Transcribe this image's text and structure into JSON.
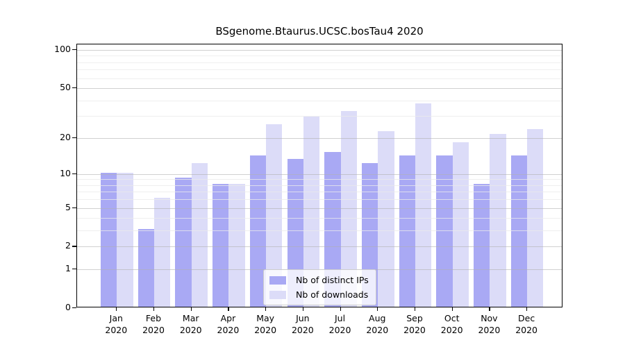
{
  "title": "BSgenome.Btaurus.UCSC.bosTau4 2020",
  "chart_data": {
    "type": "bar",
    "title": "BSgenome.Btaurus.UCSC.bosTau4 2020",
    "categories": [
      "Jan",
      "Feb",
      "Mar",
      "Apr",
      "May",
      "Jun",
      "Jul",
      "Aug",
      "Sep",
      "Oct",
      "Nov",
      "Dec"
    ],
    "year_label": "2020",
    "series": [
      {
        "name": "Nb of distinct IPs",
        "color": "#a9a9f4",
        "values": [
          10,
          3,
          9,
          8,
          14,
          13,
          15,
          12,
          14,
          14,
          8,
          14
        ]
      },
      {
        "name": "Nb of downloads",
        "color": "#dcdcf8",
        "values": [
          10,
          6,
          12,
          8,
          25,
          29,
          32,
          22,
          37,
          18,
          21,
          23
        ]
      }
    ],
    "xlabel": "",
    "ylabel": "",
    "yscale": "log1p",
    "yticks": [
      0,
      1,
      2,
      5,
      10,
      20,
      50,
      100
    ],
    "minor_gridlines": [
      3,
      4,
      6,
      7,
      8,
      9,
      30,
      40,
      60,
      70,
      80,
      90
    ],
    "ylim": [
      0,
      110
    ],
    "grid": true,
    "legend_position": "lower center"
  }
}
